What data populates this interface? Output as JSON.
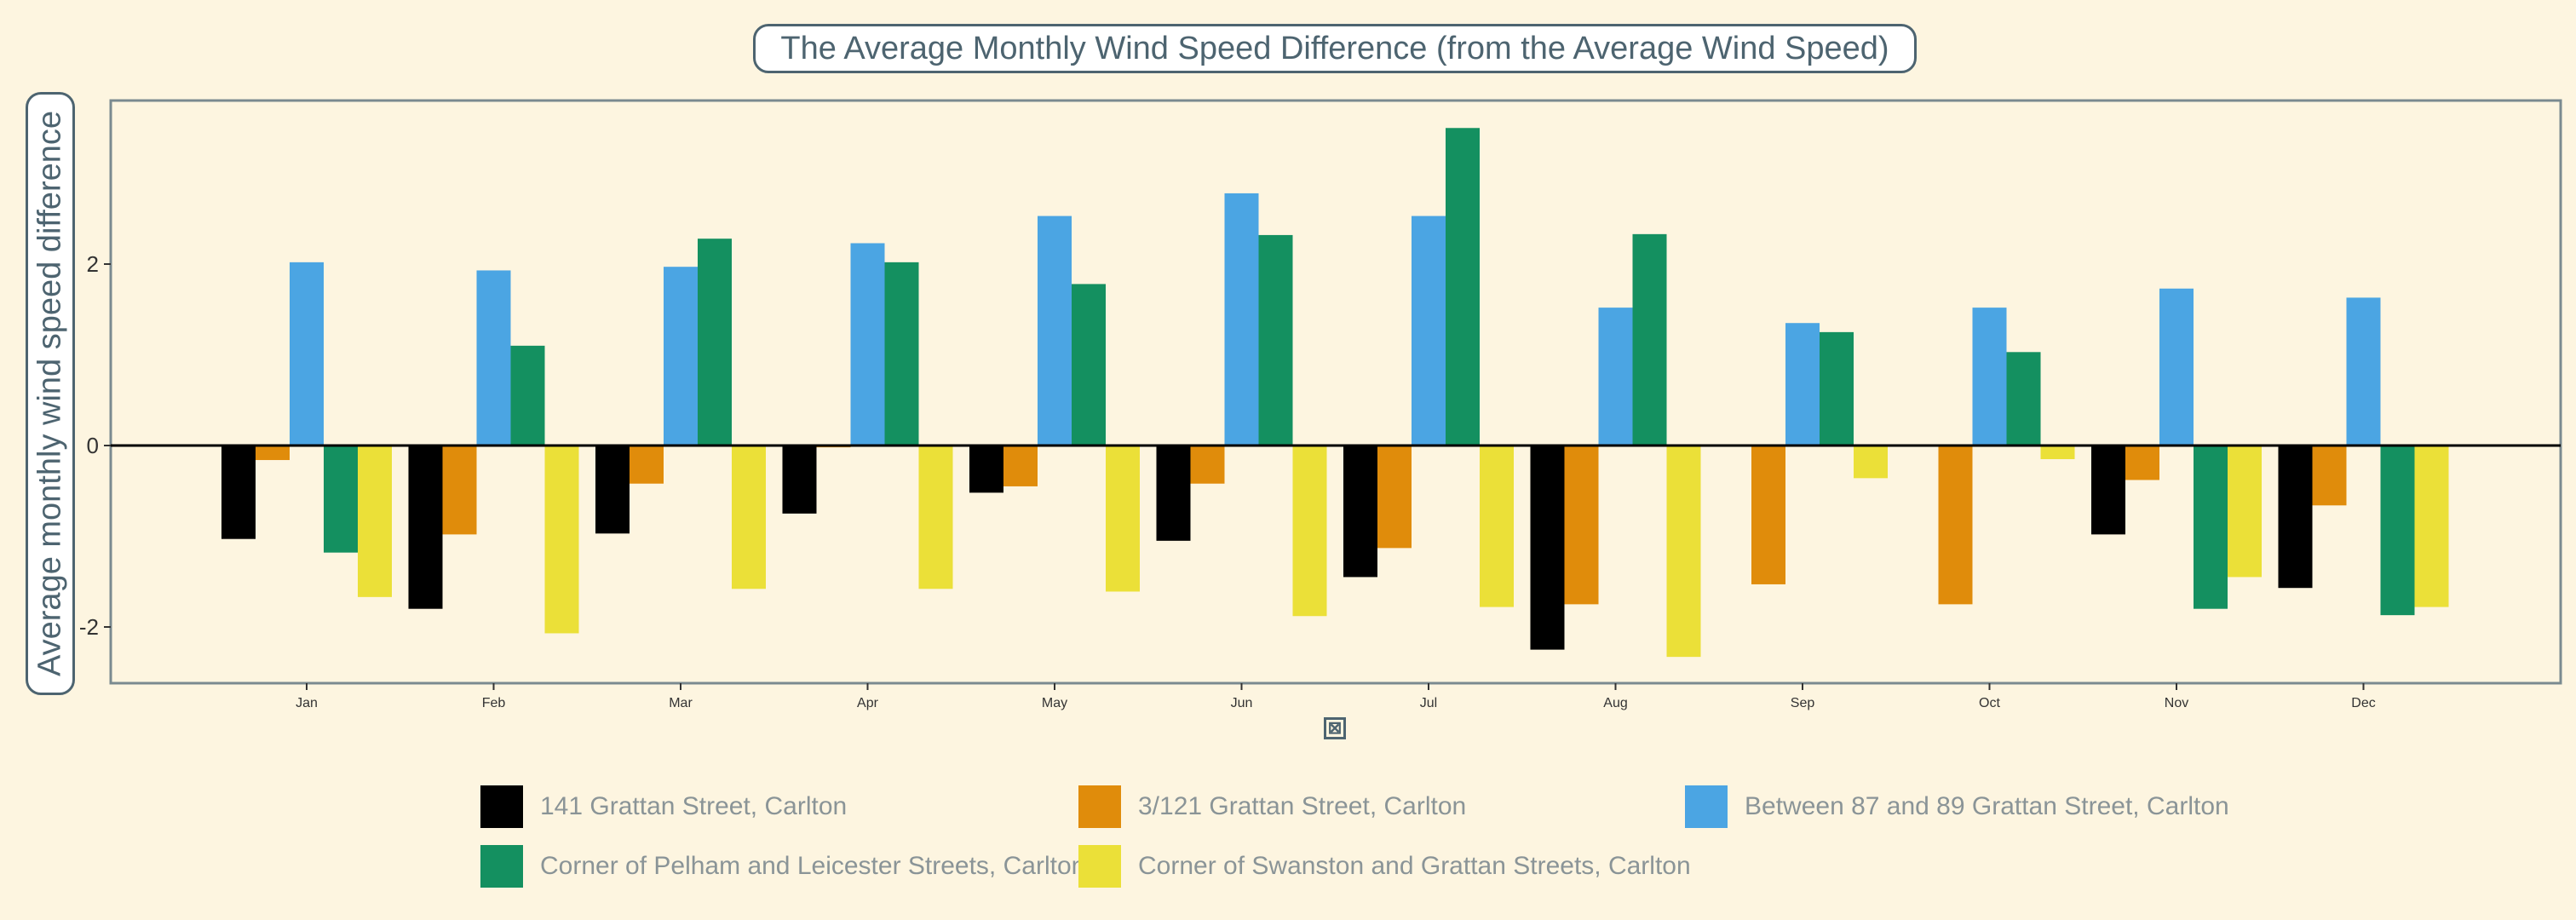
{
  "chart_data": {
    "type": "bar",
    "title": "The Average Monthly Wind Speed Difference (from the Average Wind Speed)",
    "ylabel": "Average monthly wind speed difference",
    "categories": [
      "Jan",
      "Feb",
      "Mar",
      "Apr",
      "May",
      "Jun",
      "Jul",
      "Aug",
      "Sep",
      "Oct",
      "Nov",
      "Dec"
    ],
    "ylim": [
      -2.6,
      3.75
    ],
    "yticks": [
      -2,
      0,
      2
    ],
    "grid": false,
    "legend_position": "bottom",
    "series": [
      {
        "name": "141 Grattan Street, Carlton",
        "color": "#000000",
        "values": [
          -1.03,
          -1.8,
          -0.97,
          -0.75,
          -0.52,
          -1.05,
          -1.45,
          -2.25,
          null,
          null,
          -0.98,
          -1.57
        ]
      },
      {
        "name": "3/121 Grattan Street, Carlton",
        "color": "#e08c0b",
        "values": [
          -0.16,
          -0.98,
          -0.42,
          -0.02,
          -0.45,
          -0.42,
          -1.13,
          -1.75,
          -1.53,
          -1.75,
          -0.38,
          -0.66
        ]
      },
      {
        "name": "Between 87 and 89 Grattan Street, Carlton",
        "color": "#4ba5e3",
        "values": [
          2.02,
          1.93,
          1.97,
          2.23,
          2.53,
          2.78,
          2.53,
          1.52,
          1.35,
          1.52,
          1.73,
          1.63
        ]
      },
      {
        "name": "Corner of Pelham and Leicester Streets, Carlton",
        "color": "#149060",
        "values": [
          -1.18,
          1.1,
          2.28,
          2.02,
          1.78,
          2.32,
          3.5,
          2.33,
          1.25,
          1.03,
          -1.8,
          -1.87
        ]
      },
      {
        "name": "Corner of Swanston and Grattan Streets, Carlton",
        "color": "#ebe038",
        "values": [
          -1.67,
          -2.07,
          -1.58,
          -1.58,
          -1.61,
          -1.88,
          -1.78,
          -2.33,
          -0.36,
          -0.15,
          -1.45,
          -1.78
        ]
      }
    ]
  },
  "axis": {
    "x_icon": "broken-image-icon"
  }
}
